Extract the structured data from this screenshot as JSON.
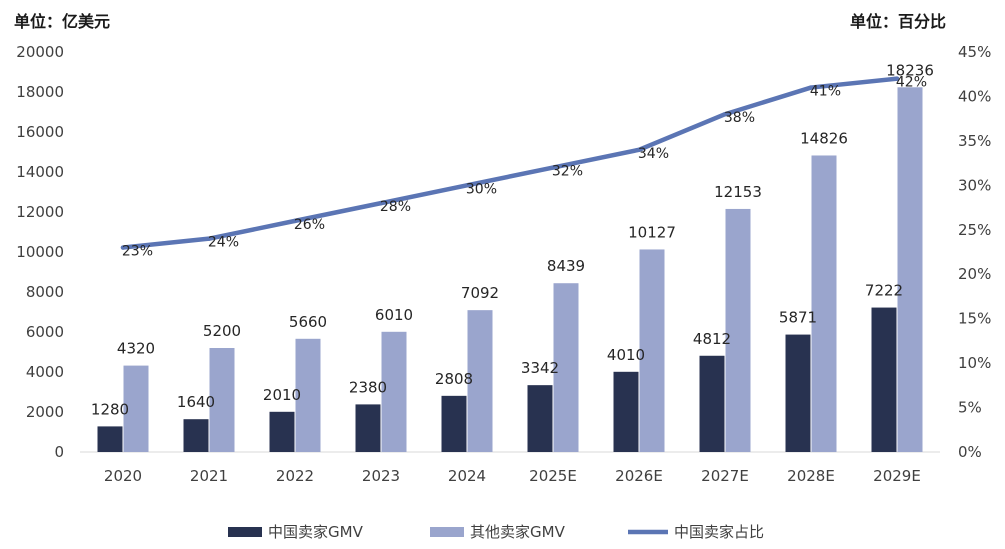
{
  "chart_data": {
    "type": "bar",
    "left_axis_unit": "单位：亿美元",
    "right_axis_unit": "单位：百分比",
    "categories": [
      "2020",
      "2021",
      "2022",
      "2023",
      "2024",
      "2025E",
      "2026E",
      "2027E",
      "2028E",
      "2029E"
    ],
    "series": [
      {
        "name": "中国卖家GMV",
        "type": "bar",
        "axis": "left",
        "color": "#283250",
        "values": [
          1280,
          1640,
          2010,
          2380,
          2808,
          3342,
          4010,
          4812,
          5871,
          7222
        ]
      },
      {
        "name": "其他卖家GMV",
        "type": "bar",
        "axis": "left",
        "color": "#9aa5cd",
        "values": [
          4320,
          5200,
          5660,
          6010,
          7092,
          8439,
          10127,
          12153,
          14826,
          18236
        ]
      },
      {
        "name": "中国卖家占比",
        "type": "line",
        "axis": "right",
        "color": "#5b75b4",
        "values": [
          23,
          24,
          26,
          28,
          30,
          32,
          34,
          38,
          41,
          42
        ],
        "labels": [
          "23%",
          "24%",
          "26%",
          "28%",
          "30%",
          "32%",
          "34%",
          "38%",
          "41%",
          "42%"
        ]
      }
    ],
    "ylim_left": [
      0,
      20000
    ],
    "yticks_left": [
      "0",
      "2000",
      "4000",
      "6000",
      "8000",
      "10000",
      "12000",
      "14000",
      "16000",
      "18000",
      "20000"
    ],
    "ylim_right": [
      0,
      45
    ],
    "yticks_right": [
      "0%",
      "5%",
      "10%",
      "15%",
      "20%",
      "25%",
      "30%",
      "35%",
      "40%",
      "45%"
    ],
    "grid": false,
    "legend_position": "bottom"
  }
}
